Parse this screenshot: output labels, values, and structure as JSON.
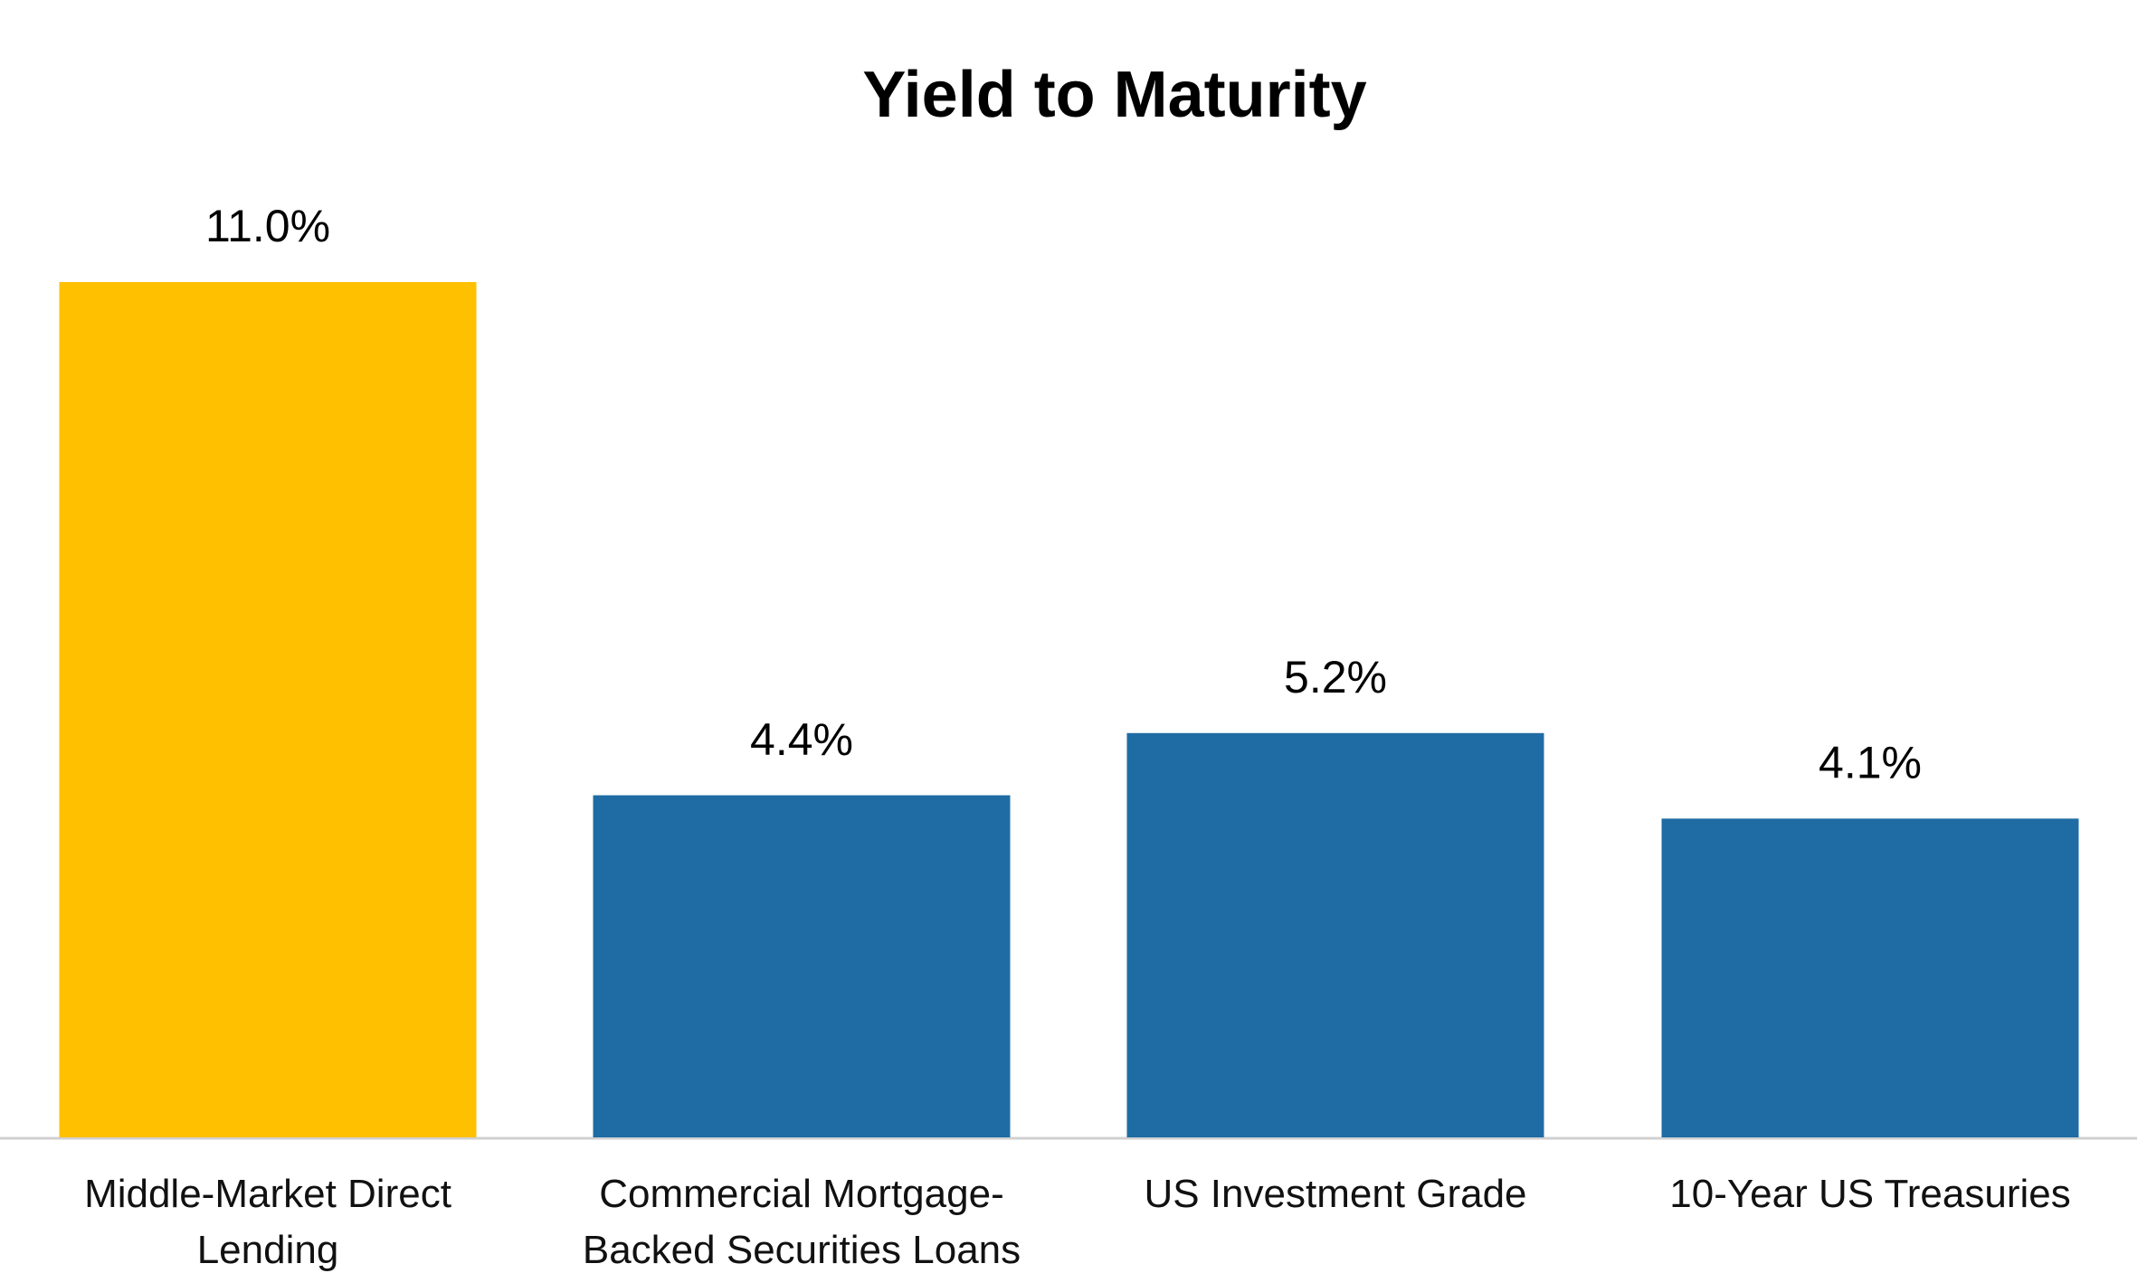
{
  "chart_data": {
    "type": "bar",
    "title": "Yield to Maturity",
    "categories": [
      "Middle-Market Direct Lending",
      "Commercial Mortgage-Backed Securities Loans",
      "US Investment Grade",
      "10-Year US Treasuries"
    ],
    "values": [
      11.0,
      4.4,
      5.2,
      4.1
    ],
    "value_labels": [
      "11.0%",
      "4.4%",
      "5.2%",
      "4.1%"
    ],
    "colors": [
      "#FFC000",
      "#1F6CA4",
      "#1F6CA4",
      "#1F6CA4"
    ],
    "ylim": [
      0,
      11
    ]
  }
}
